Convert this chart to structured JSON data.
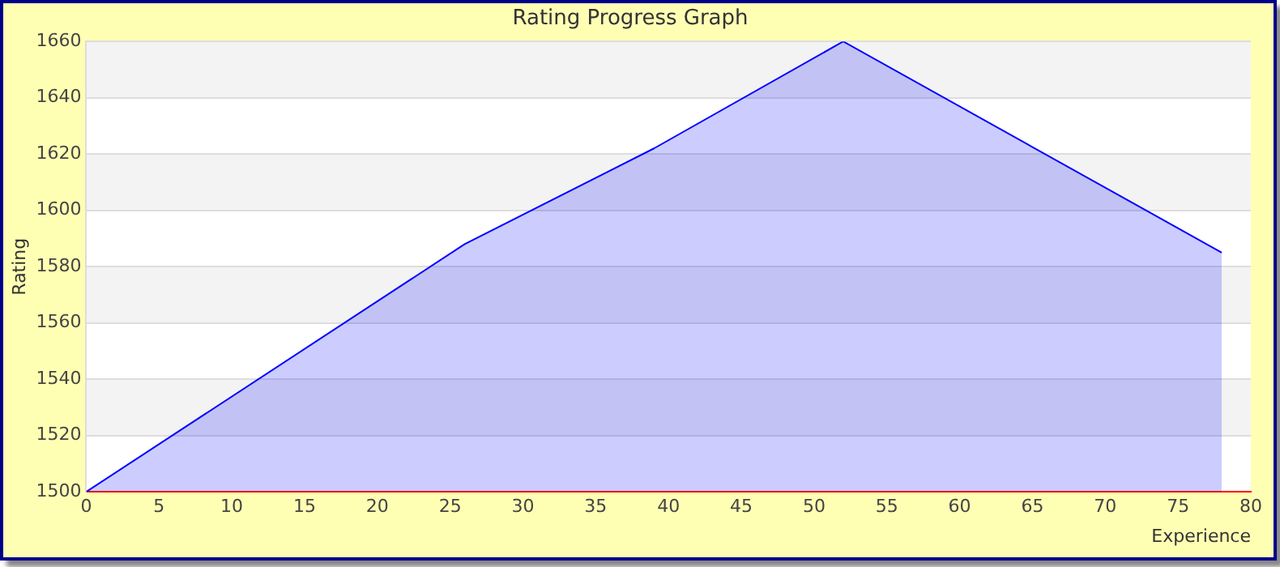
{
  "chart_data": {
    "type": "area",
    "title": "Rating Progress Graph",
    "xlabel": "Experience",
    "ylabel": "Rating",
    "x": [
      0,
      26,
      39,
      52,
      78
    ],
    "series": [
      {
        "color": "#0000ff",
        "values": [
          1500,
          1588,
          1622,
          1660,
          1585
        ]
      }
    ],
    "xlim": [
      0,
      80
    ],
    "xticks": [
      0,
      5,
      10,
      15,
      20,
      25,
      30,
      35,
      40,
      45,
      50,
      55,
      60,
      65,
      70,
      75,
      80
    ],
    "ylim": [
      1500,
      1660
    ],
    "yticks": [
      1500,
      1520,
      1540,
      1560,
      1580,
      1600,
      1620,
      1640,
      1660
    ],
    "grid": "y",
    "legend": false,
    "marker": "none"
  }
}
